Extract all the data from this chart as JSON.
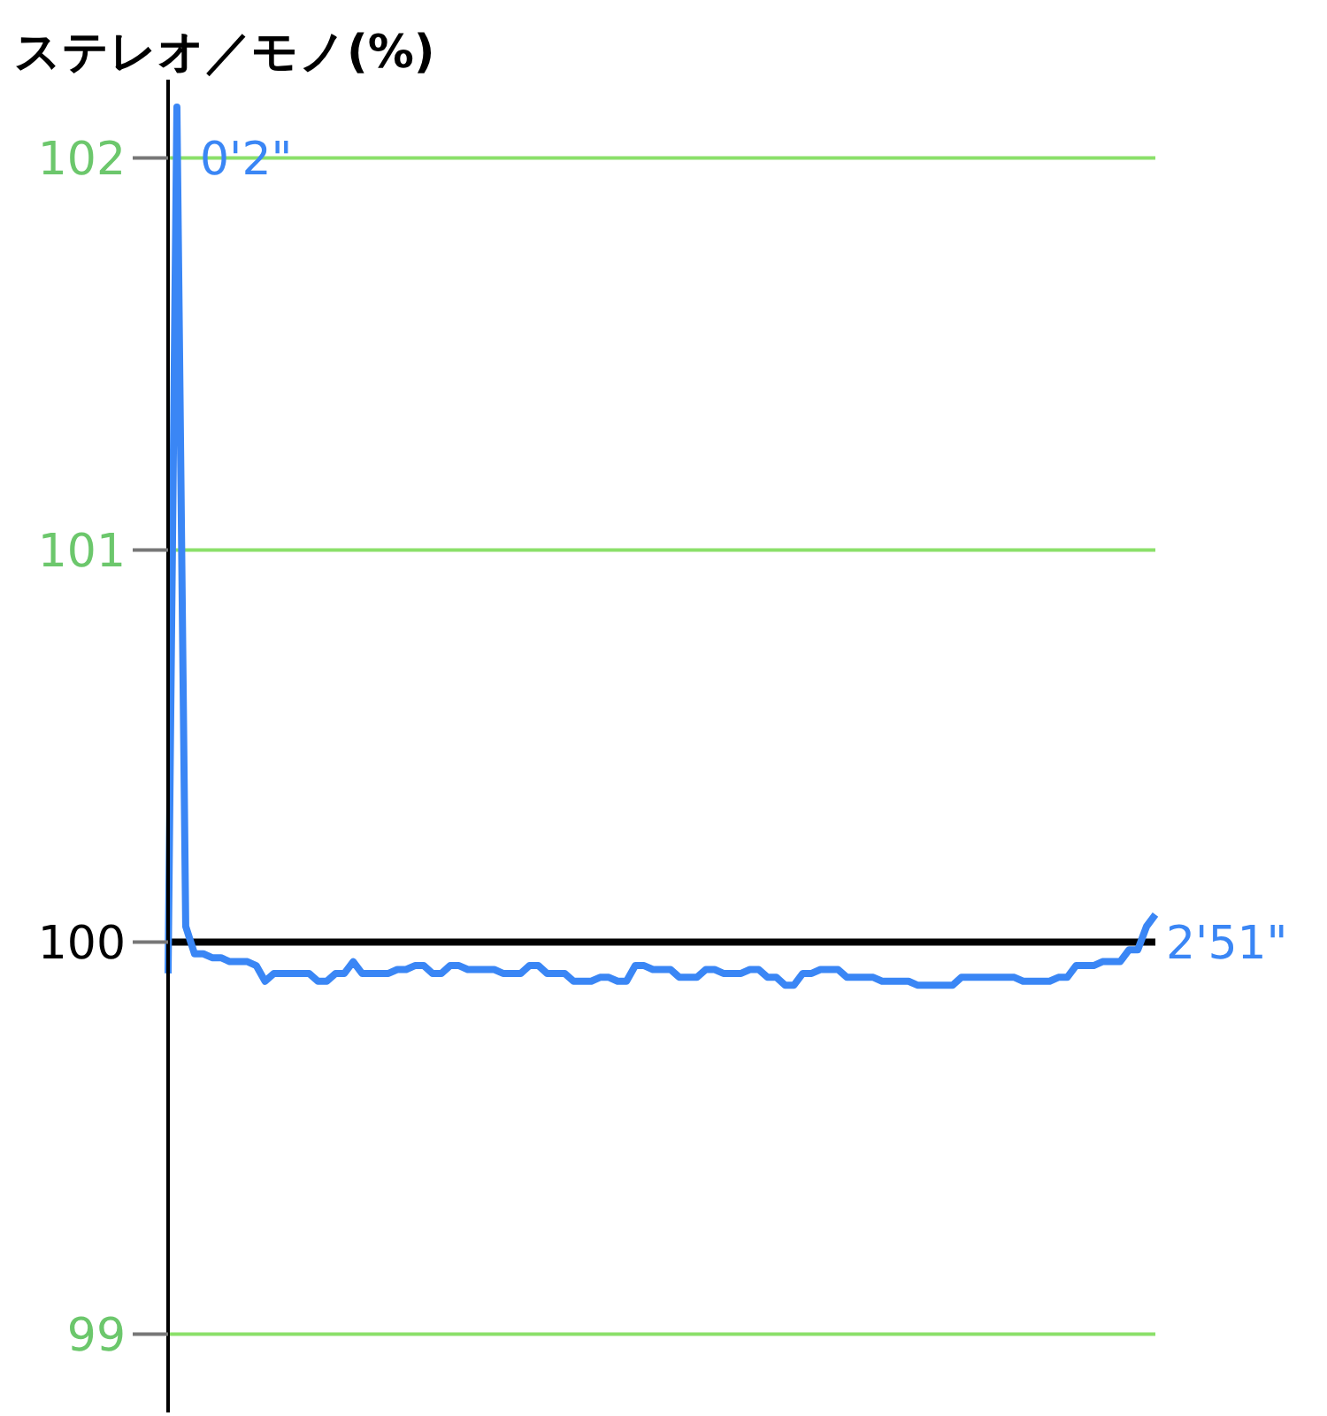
{
  "chart_data": {
    "type": "line",
    "ylabel": "ステレオ／モノ(%)",
    "categories": [
      null,
      null,
      null,
      null,
      null,
      null,
      null,
      null,
      null,
      null,
      null,
      null,
      null,
      null,
      null,
      null,
      null,
      null,
      null,
      null,
      null,
      null,
      null,
      null,
      null,
      null,
      null,
      null,
      null,
      null,
      null,
      null,
      null,
      null,
      null,
      null,
      null,
      null,
      null,
      null,
      null,
      null,
      null,
      null,
      null,
      null,
      null,
      null,
      null,
      null,
      null,
      null,
      null,
      null,
      null,
      null,
      null,
      null,
      null,
      null,
      null,
      null,
      null,
      null,
      null,
      null,
      null,
      null,
      null,
      null,
      null,
      null,
      null,
      null,
      null,
      null,
      null,
      null,
      null,
      null,
      null,
      null,
      null,
      null,
      null,
      null,
      null,
      null,
      null,
      null,
      null,
      null,
      null,
      null,
      null,
      null,
      null,
      null,
      null,
      null,
      null,
      null,
      null,
      null,
      null,
      null,
      null,
      null,
      null,
      null,
      null,
      null,
      null
    ],
    "series": [
      {
        "color": "#3a86f5",
        "values": [
          99.92,
          102.13,
          100.04,
          99.97,
          99.97,
          99.96,
          99.96,
          99.95,
          99.95,
          99.95,
          99.94,
          99.9,
          99.92,
          99.92,
          99.92,
          99.92,
          99.92,
          99.9,
          99.9,
          99.92,
          99.92,
          99.95,
          99.92,
          99.92,
          99.92,
          99.92,
          99.93,
          99.93,
          99.94,
          99.94,
          99.92,
          99.92,
          99.94,
          99.94,
          99.93,
          99.93,
          99.93,
          99.93,
          99.92,
          99.92,
          99.92,
          99.94,
          99.94,
          99.92,
          99.92,
          99.92,
          99.9,
          99.9,
          99.9,
          99.91,
          99.91,
          99.9,
          99.9,
          99.94,
          99.94,
          99.93,
          99.93,
          99.93,
          99.91,
          99.91,
          99.91,
          99.93,
          99.93,
          99.92,
          99.92,
          99.92,
          99.93,
          99.93,
          99.91,
          99.91,
          99.89,
          99.89,
          99.92,
          99.92,
          99.93,
          99.93,
          99.93,
          99.91,
          99.91,
          99.91,
          99.91,
          99.9,
          99.9,
          99.9,
          99.9,
          99.89,
          99.89,
          99.89,
          99.89,
          99.89,
          99.91,
          99.91,
          99.91,
          99.91,
          99.91,
          99.91,
          99.91,
          99.9,
          99.9,
          99.9,
          99.9,
          99.91,
          99.91,
          99.94,
          99.94,
          99.94,
          99.95,
          99.95,
          99.95,
          99.98,
          99.98,
          100.04,
          100.07
        ]
      }
    ],
    "ylim": [
      98.8,
      102.2
    ],
    "yticks": [
      99,
      100,
      101,
      102
    ],
    "tick_labels": "y",
    "grid": "y",
    "marker": "none",
    "line_style": "solid",
    "ref_lines": [
      {
        "axis": "y",
        "value": 100,
        "color": "#000000"
      }
    ],
    "annotations": [
      "0'2\"",
      "2'51\""
    ]
  }
}
